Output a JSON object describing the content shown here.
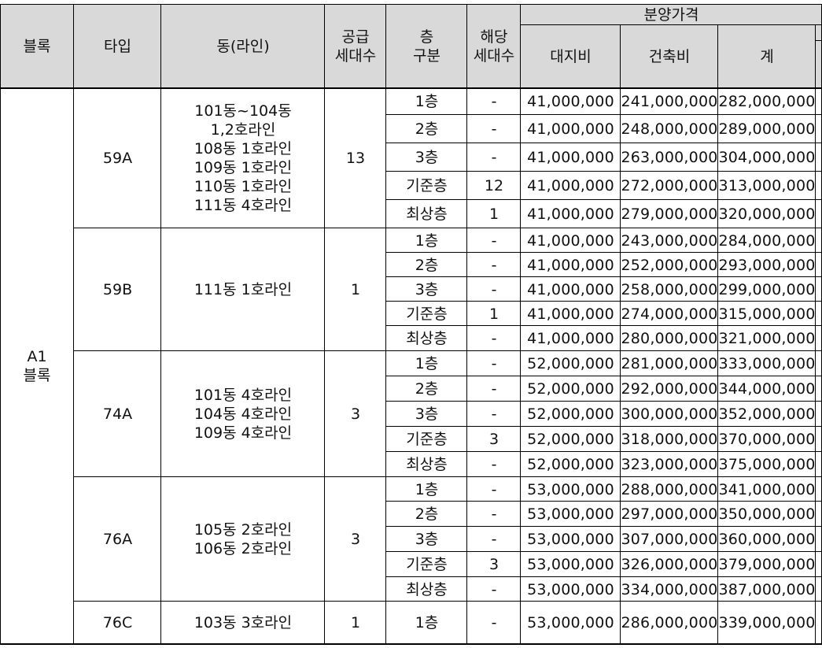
{
  "table": {
    "headers": {
      "block": "블록",
      "type": "타입",
      "dong_line": "동(라인)",
      "supply_units": [
        "공급",
        "세대수"
      ],
      "floor_group": [
        "층",
        "구분"
      ],
      "applicable_units": [
        "해당",
        "세대수"
      ],
      "sale_price": "분양가격",
      "land_cost": "대지비",
      "build_cost": "건축비",
      "total": "계"
    },
    "block_label": [
      "A1",
      "블록"
    ],
    "groups": [
      {
        "type": "59A",
        "dong": [
          "101동~104동",
          "1,2호라인",
          "108동  1호라인",
          "109동  1호라인",
          "110동  1호라인",
          "111동  4호라인"
        ],
        "supply": "13",
        "rows": [
          {
            "floor": "1층",
            "units": "-",
            "land": "41,000,000",
            "build": "241,000,000",
            "total": "282,000,000"
          },
          {
            "floor": "2층",
            "units": "-",
            "land": "41,000,000",
            "build": "248,000,000",
            "total": "289,000,000"
          },
          {
            "floor": "3층",
            "units": "-",
            "land": "41,000,000",
            "build": "263,000,000",
            "total": "304,000,000"
          },
          {
            "floor": "기준층",
            "units": "12",
            "land": "41,000,000",
            "build": "272,000,000",
            "total": "313,000,000"
          },
          {
            "floor": "최상층",
            "units": "1",
            "land": "41,000,000",
            "build": "279,000,000",
            "total": "320,000,000"
          }
        ]
      },
      {
        "type": "59B",
        "dong": [
          "111동  1호라인"
        ],
        "supply": "1",
        "rows": [
          {
            "floor": "1층",
            "units": "-",
            "land": "41,000,000",
            "build": "243,000,000",
            "total": "284,000,000"
          },
          {
            "floor": "2층",
            "units": "-",
            "land": "41,000,000",
            "build": "252,000,000",
            "total": "293,000,000"
          },
          {
            "floor": "3층",
            "units": "-",
            "land": "41,000,000",
            "build": "258,000,000",
            "total": "299,000,000"
          },
          {
            "floor": "기준층",
            "units": "1",
            "land": "41,000,000",
            "build": "274,000,000",
            "total": "315,000,000"
          },
          {
            "floor": "최상층",
            "units": "-",
            "land": "41,000,000",
            "build": "280,000,000",
            "total": "321,000,000"
          }
        ]
      },
      {
        "type": "74A",
        "dong": [
          "101동  4호라인",
          "104동  4호라인",
          "109동  4호라인"
        ],
        "supply": "3",
        "rows": [
          {
            "floor": "1층",
            "units": "-",
            "land": "52,000,000",
            "build": "281,000,000",
            "total": "333,000,000"
          },
          {
            "floor": "2층",
            "units": "-",
            "land": "52,000,000",
            "build": "292,000,000",
            "total": "344,000,000"
          },
          {
            "floor": "3층",
            "units": "-",
            "land": "52,000,000",
            "build": "300,000,000",
            "total": "352,000,000"
          },
          {
            "floor": "기준층",
            "units": "3",
            "land": "52,000,000",
            "build": "318,000,000",
            "total": "370,000,000"
          },
          {
            "floor": "최상층",
            "units": "-",
            "land": "52,000,000",
            "build": "323,000,000",
            "total": "375,000,000"
          }
        ]
      },
      {
        "type": "76A",
        "dong": [
          "105동  2호라인",
          "106동  2호라인"
        ],
        "supply": "3",
        "rows": [
          {
            "floor": "1층",
            "units": "-",
            "land": "53,000,000",
            "build": "288,000,000",
            "total": "341,000,000"
          },
          {
            "floor": "2층",
            "units": "-",
            "land": "53,000,000",
            "build": "297,000,000",
            "total": "350,000,000"
          },
          {
            "floor": "3층",
            "units": "-",
            "land": "53,000,000",
            "build": "307,000,000",
            "total": "360,000,000"
          },
          {
            "floor": "기준층",
            "units": "3",
            "land": "53,000,000",
            "build": "326,000,000",
            "total": "379,000,000"
          },
          {
            "floor": "최상층",
            "units": "-",
            "land": "53,000,000",
            "build": "334,000,000",
            "total": "387,000,000"
          }
        ]
      },
      {
        "type": "76C",
        "dong": [
          "103동  3호라인"
        ],
        "supply": "1",
        "rows": [
          {
            "floor": "1층",
            "units": "-",
            "land": "53,000,000",
            "build": "286,000,000",
            "total": "339,000,000"
          }
        ]
      }
    ]
  }
}
